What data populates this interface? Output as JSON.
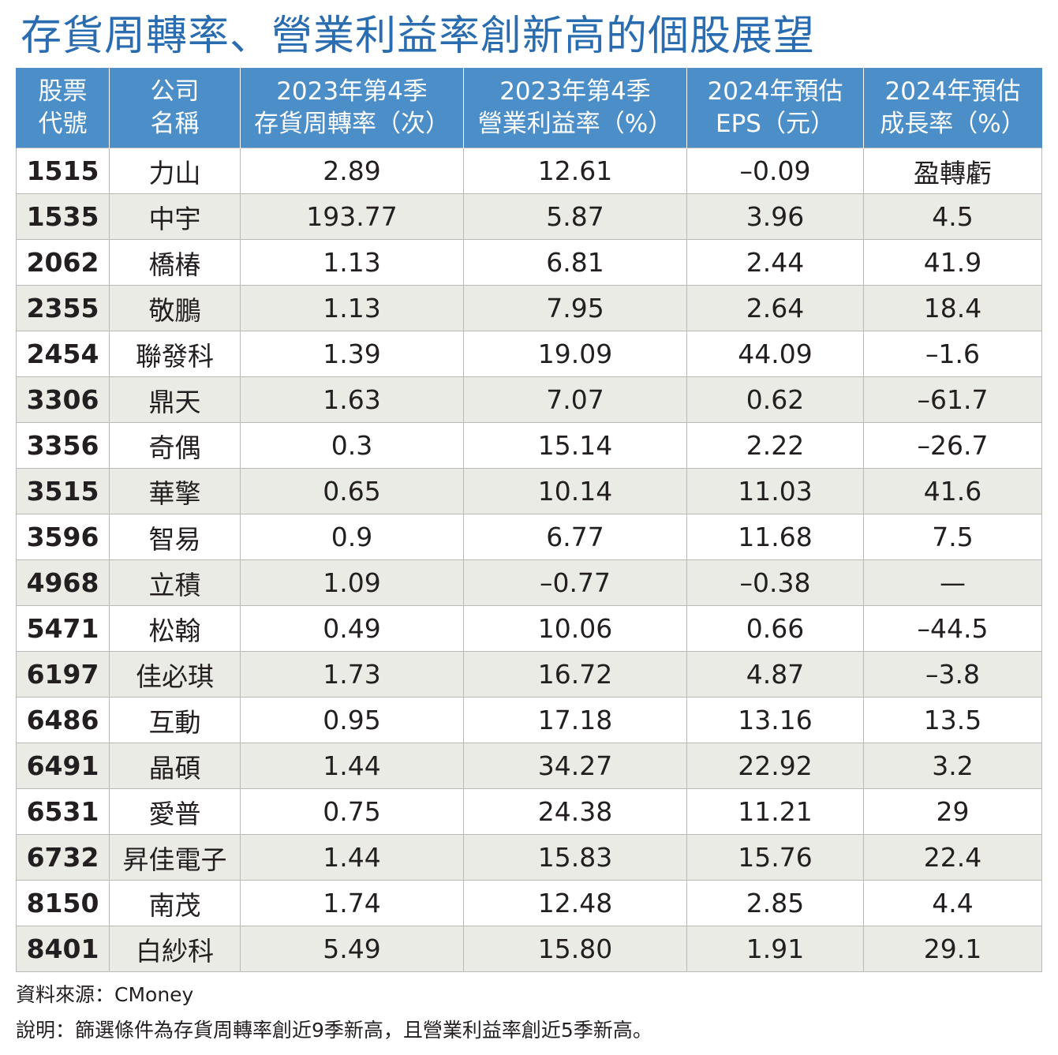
{
  "title": "存貨周轉率、營業利益率創新高的個股展望",
  "columns": [
    {
      "line1": "股票",
      "line2": "代號"
    },
    {
      "line1": "公司",
      "line2": "名稱"
    },
    {
      "line1": "2023年第4季",
      "line2": "存貨周轉率（次）"
    },
    {
      "line1": "2023年第4季",
      "line2": "營業利益率（%）"
    },
    {
      "line1": "2024年預估",
      "line2": "EPS（元）"
    },
    {
      "line1": "2024年預估",
      "line2": "成長率（%）"
    }
  ],
  "rows": [
    [
      "1515",
      "力山",
      "2.89",
      "12.61",
      "–0.09",
      "盈轉虧"
    ],
    [
      "1535",
      "中宇",
      "193.77",
      "5.87",
      "3.96",
      "4.5"
    ],
    [
      "2062",
      "橋椿",
      "1.13",
      "6.81",
      "2.44",
      "41.9"
    ],
    [
      "2355",
      "敬鵬",
      "1.13",
      "7.95",
      "2.64",
      "18.4"
    ],
    [
      "2454",
      "聯發科",
      "1.39",
      "19.09",
      "44.09",
      "–1.6"
    ],
    [
      "3306",
      "鼎天",
      "1.63",
      "7.07",
      "0.62",
      "–61.7"
    ],
    [
      "3356",
      "奇偶",
      "0.3",
      "15.14",
      "2.22",
      "–26.7"
    ],
    [
      "3515",
      "華擎",
      "0.65",
      "10.14",
      "11.03",
      "41.6"
    ],
    [
      "3596",
      "智易",
      "0.9",
      "6.77",
      "11.68",
      "7.5"
    ],
    [
      "4968",
      "立積",
      "1.09",
      "–0.77",
      "–0.38",
      "—"
    ],
    [
      "5471",
      "松翰",
      "0.49",
      "10.06",
      "0.66",
      "–44.5"
    ],
    [
      "6197",
      "佳必琪",
      "1.73",
      "16.72",
      "4.87",
      "–3.8"
    ],
    [
      "6486",
      "互動",
      "0.95",
      "17.18",
      "13.16",
      "13.5"
    ],
    [
      "6491",
      "晶碩",
      "1.44",
      "34.27",
      "22.92",
      "3.2"
    ],
    [
      "6531",
      "愛普",
      "0.75",
      "24.38",
      "11.21",
      "29"
    ],
    [
      "6732",
      "昇佳電子",
      "1.44",
      "15.83",
      "15.76",
      "22.4"
    ],
    [
      "8150",
      "南茂",
      "1.74",
      "12.48",
      "2.85",
      "4.4"
    ],
    [
      "8401",
      "白紗科",
      "5.49",
      "15.80",
      "1.91",
      "29.1"
    ]
  ],
  "source": "資料來源：CMoney",
  "note": "說明：篩選條件為存貨周轉率創近9季新高，且營業利益率創近5季新高。",
  "colors": {
    "title": "#2a6cb0",
    "header_bg": "#4b8ec8",
    "stripe": "#ebebe6"
  }
}
